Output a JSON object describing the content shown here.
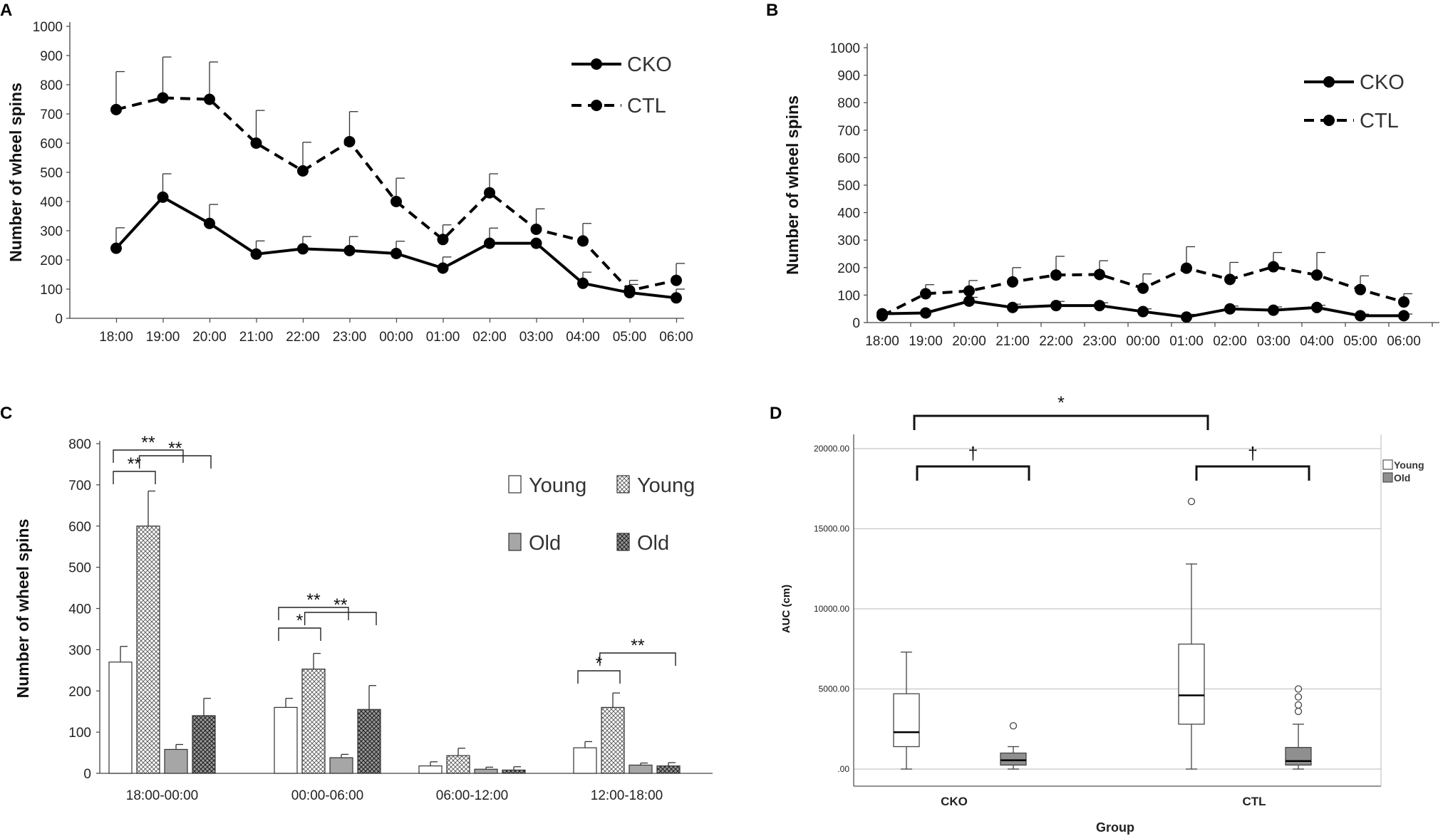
{
  "chart_data": [
    {
      "panel": "A",
      "type": "line",
      "categories": [
        "18:00",
        "19:00",
        "20:00",
        "21:00",
        "22:00",
        "23:00",
        "00:00",
        "01:00",
        "02:00",
        "03:00",
        "04:00",
        "05:00",
        "06:00"
      ],
      "series": [
        {
          "name": "CKO",
          "style": "solid",
          "values": [
            240,
            415,
            325,
            220,
            238,
            232,
            222,
            172,
            257,
            257,
            120,
            88,
            70
          ],
          "errors": [
            70,
            80,
            65,
            45,
            42,
            48,
            42,
            38,
            52,
            0,
            38,
            28,
            30
          ]
        },
        {
          "name": "CTL",
          "style": "dashed",
          "values": [
            715,
            755,
            750,
            600,
            505,
            605,
            400,
            270,
            430,
            305,
            265,
            95,
            130
          ],
          "errors": [
            130,
            140,
            128,
            112,
            98,
            103,
            80,
            50,
            65,
            70,
            60,
            35,
            58
          ]
        }
      ],
      "ylabel": "Number of wheel spins",
      "ylim": [
        0,
        1000
      ],
      "yticks": [
        0,
        100,
        200,
        300,
        400,
        500,
        600,
        700,
        800,
        900,
        1000
      ],
      "legend_position": "top-right"
    },
    {
      "panel": "B",
      "type": "line",
      "categories": [
        "18:00",
        "19:00",
        "20:00",
        "21:00",
        "22:00",
        "23:00",
        "00:00",
        "01:00",
        "02:00",
        "03:00",
        "04:00",
        "05:00",
        "06:00"
      ],
      "series": [
        {
          "name": "CKO",
          "style": "solid",
          "values": [
            32,
            35,
            78,
            55,
            62,
            62,
            40,
            20,
            50,
            45,
            55,
            25,
            25
          ],
          "errors": [
            8,
            6,
            14,
            12,
            15,
            10,
            10,
            10,
            10,
            12,
            8,
            6,
            6
          ]
        },
        {
          "name": "CTL",
          "style": "dashed",
          "values": [
            25,
            105,
            115,
            148,
            173,
            175,
            125,
            198,
            157,
            203,
            173,
            120,
            75
          ],
          "errors": [
            8,
            33,
            38,
            52,
            68,
            50,
            52,
            78,
            62,
            52,
            82,
            50,
            30
          ]
        }
      ],
      "ylabel": "Number of wheel spins",
      "ylim": [
        0,
        1000
      ],
      "yticks": [
        0,
        100,
        200,
        300,
        400,
        500,
        600,
        700,
        800,
        900,
        1000
      ],
      "legend_position": "top-right"
    },
    {
      "panel": "C",
      "type": "bar",
      "categories": [
        "18:00-00:00",
        "00:00-06:00",
        "06:00-12:00",
        "12:00-18:00"
      ],
      "series": [
        {
          "name": "Young",
          "fill": "white",
          "values": [
            270,
            160,
            18,
            62
          ],
          "errors": [
            38,
            22,
            10,
            15
          ]
        },
        {
          "name": "Young",
          "fill": "crosshatch",
          "values": [
            600,
            253,
            43,
            160
          ],
          "errors": [
            85,
            38,
            18,
            35
          ]
        },
        {
          "name": "Old",
          "fill": "gray",
          "values": [
            58,
            38,
            10,
            20
          ],
          "errors": [
            12,
            8,
            5,
            5
          ]
        },
        {
          "name": "Old",
          "fill": "dark-crosshatch",
          "values": [
            140,
            155,
            8,
            18
          ],
          "errors": [
            42,
            58,
            8,
            8
          ]
        }
      ],
      "ylabel": "Number of wheel spins",
      "ylim": [
        0,
        800
      ],
      "yticks": [
        0,
        100,
        200,
        300,
        400,
        500,
        600,
        700,
        800
      ],
      "significance": [
        {
          "group": "18:00-00:00",
          "pair": "Young-Young",
          "label": "**"
        },
        {
          "group": "18:00-00:00",
          "pair": "Young-Old",
          "label": "**"
        },
        {
          "group": "18:00-00:00",
          "pair": "Young-Old (hatched)",
          "label": "**"
        },
        {
          "group": "00:00-06:00",
          "pair": "Young-Young",
          "label": "*"
        },
        {
          "group": "00:00-06:00",
          "pair": "Young-Old",
          "label": "**"
        },
        {
          "group": "00:00-06:00",
          "pair": "Young-Old (hatched)",
          "label": "**"
        },
        {
          "group": "12:00-18:00",
          "pair": "Young-Young",
          "label": "*"
        },
        {
          "group": "12:00-18:00",
          "pair": "Young-Old (hatched)",
          "label": "**"
        }
      ],
      "legend": [
        "Young",
        "Young",
        "Old",
        "Old"
      ]
    },
    {
      "panel": "D",
      "type": "box",
      "categories": [
        "CKO",
        "CTL"
      ],
      "series": [
        {
          "name": "Young",
          "fill": "white",
          "boxes": [
            {
              "min": 0,
              "q1": 1400,
              "median": 2300,
              "q3": 4700,
              "max": 7300,
              "outliers": []
            },
            {
              "min": 0,
              "q1": 2800,
              "median": 4600,
              "q3": 7800,
              "max": 12800,
              "outliers": [
                16700
              ]
            }
          ]
        },
        {
          "name": "Old",
          "fill": "gray",
          "boxes": [
            {
              "min": 0,
              "q1": 250,
              "median": 550,
              "q3": 1000,
              "max": 1400,
              "outliers": [
                2700
              ]
            },
            {
              "min": 0,
              "q1": 250,
              "median": 500,
              "q3": 1350,
              "max": 2800,
              "outliers": [
                3600,
                4000,
                4500,
                5000
              ]
            }
          ]
        }
      ],
      "ylabel": "AUC (cm)",
      "xlabel": "Group",
      "ylim": [
        -1000,
        21000
      ],
      "yticks": [
        0,
        5000,
        10000,
        15000,
        20000
      ],
      "ytick_labels": [
        ".00",
        "5000.00",
        "10000.00",
        "15000.00",
        "20000.00"
      ],
      "significance": [
        {
          "pair": "CKO-CTL",
          "label": "*"
        },
        {
          "pair": "CKO Young-Old",
          "label": "†"
        },
        {
          "pair": "CTL Young-Old",
          "label": "†"
        }
      ],
      "legend": [
        "Young",
        "Old"
      ],
      "legend_position": "top-right"
    }
  ],
  "panel_letters": [
    "A",
    "B",
    "C",
    "D"
  ]
}
